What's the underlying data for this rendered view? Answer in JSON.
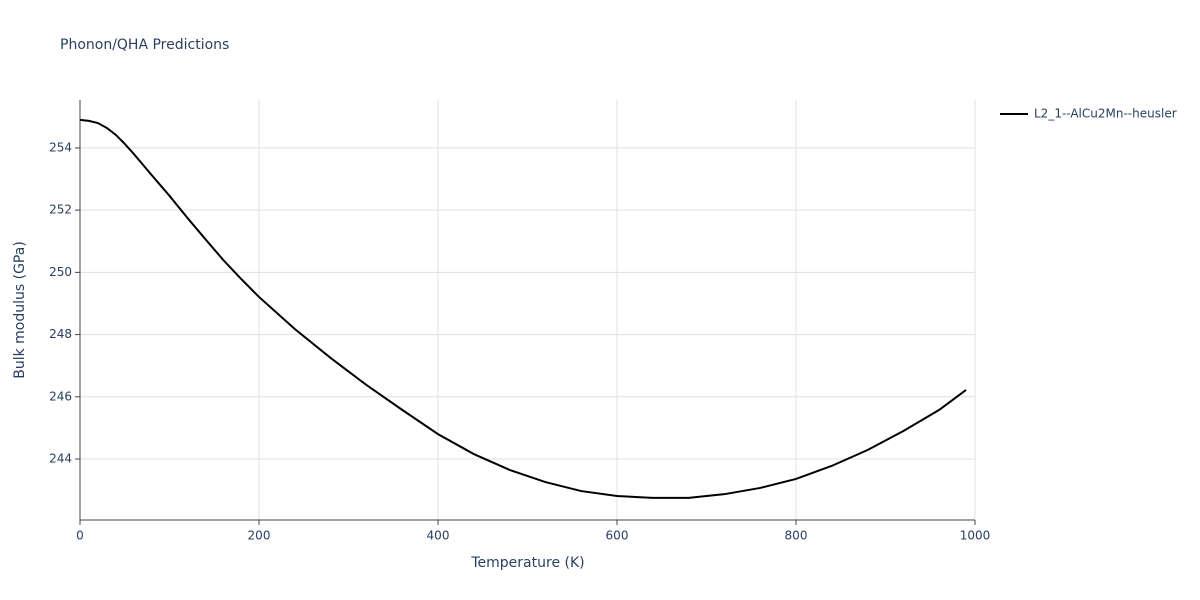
{
  "chart_data": {
    "type": "line",
    "title": "Phonon/QHA Predictions",
    "x_label": "Temperature (K)",
    "y_label": "Bulk modulus (GPa)",
    "x": [
      0,
      10,
      20,
      30,
      40,
      50,
      60,
      80,
      100,
      120,
      140,
      160,
      180,
      200,
      240,
      280,
      320,
      360,
      400,
      440,
      480,
      520,
      560,
      600,
      640,
      680,
      720,
      760,
      800,
      840,
      880,
      920,
      960,
      990
    ],
    "series": [
      {
        "name": "L2_1--AlCu2Mn--heusler",
        "color": "#000000",
        "values": [
          254.9,
          254.87,
          254.8,
          254.64,
          254.42,
          254.13,
          253.81,
          253.13,
          252.46,
          251.75,
          251.07,
          250.4,
          249.79,
          249.21,
          248.18,
          247.25,
          246.38,
          245.58,
          244.8,
          244.16,
          243.65,
          243.26,
          242.97,
          242.81,
          242.75,
          242.75,
          242.87,
          243.07,
          243.36,
          243.78,
          244.29,
          244.9,
          245.58,
          246.22
        ]
      }
    ],
    "xlim": [
      0,
      1000
    ],
    "xticks": [
      0,
      200,
      400,
      600,
      800,
      1000
    ],
    "ylim": [
      242.04,
      255.54
    ],
    "yticks": [
      244,
      246,
      248,
      250,
      252,
      254
    ],
    "grid": true,
    "legend": "right"
  }
}
